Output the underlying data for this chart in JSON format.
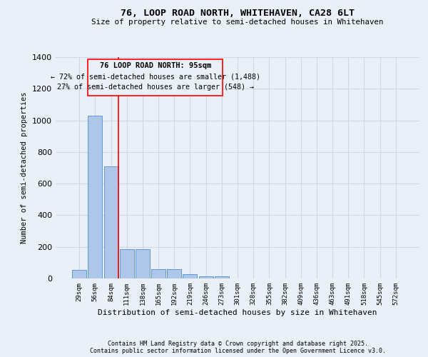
{
  "title": "76, LOOP ROAD NORTH, WHITEHAVEN, CA28 6LT",
  "subtitle": "Size of property relative to semi-detached houses in Whitehaven",
  "xlabel": "Distribution of semi-detached houses by size in Whitehaven",
  "ylabel": "Number of semi-detached properties",
  "bin_labels": [
    "29sqm",
    "56sqm",
    "84sqm",
    "111sqm",
    "138sqm",
    "165sqm",
    "192sqm",
    "219sqm",
    "246sqm",
    "273sqm",
    "301sqm",
    "328sqm",
    "355sqm",
    "382sqm",
    "409sqm",
    "436sqm",
    "463sqm",
    "491sqm",
    "518sqm",
    "545sqm",
    "572sqm"
  ],
  "bar_heights": [
    55,
    1030,
    710,
    185,
    185,
    60,
    60,
    25,
    15,
    15,
    0,
    0,
    0,
    0,
    0,
    0,
    0,
    0,
    0,
    0,
    0
  ],
  "bar_color": "#aec6e8",
  "bar_edge_color": "#5b9bd5",
  "grid_color": "#d0d8e8",
  "bg_color": "#eaf0f8",
  "red_line_x": 2.45,
  "annotation_title": "76 LOOP ROAD NORTH: 95sqm",
  "annotation_line1": "← 72% of semi-detached houses are smaller (1,488)",
  "annotation_line2": "27% of semi-detached houses are larger (548) →",
  "footer1": "Contains HM Land Registry data © Crown copyright and database right 2025.",
  "footer2": "Contains public sector information licensed under the Open Government Licence v3.0.",
  "ylim": [
    0,
    1400
  ]
}
